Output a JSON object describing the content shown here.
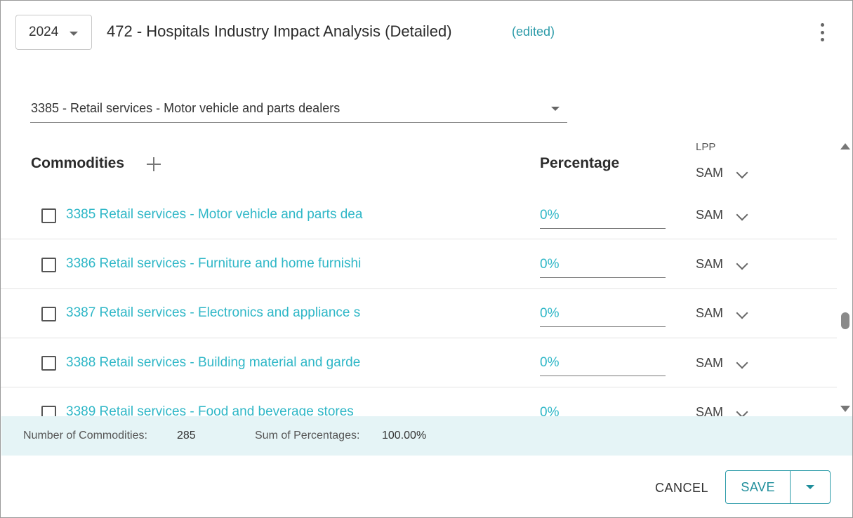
{
  "header": {
    "year": "2024",
    "title": "472 - Hospitals Industry Impact Analysis (Detailed)",
    "edited": "(edited)"
  },
  "industry_select": {
    "value": "3385 - Retail services - Motor vehicle and parts dealers"
  },
  "table": {
    "commodities_header": "Commodities",
    "percentage_header": "Percentage",
    "lpp_label": "LPP",
    "lpp_header_value": "SAM",
    "rows": [
      {
        "name": "3385 Retail services - Motor vehicle and parts dea",
        "percentage": "0%",
        "lpp": "SAM"
      },
      {
        "name": "3386 Retail services - Furniture and home furnishi",
        "percentage": "0%",
        "lpp": "SAM"
      },
      {
        "name": "3387 Retail services - Electronics and appliance s",
        "percentage": "0%",
        "lpp": "SAM"
      },
      {
        "name": "3388 Retail services - Building material and garde",
        "percentage": "0%",
        "lpp": "SAM"
      },
      {
        "name": "3389 Retail services - Food and beverage stores",
        "percentage": "0%",
        "lpp": "SAM"
      }
    ]
  },
  "summary": {
    "count_label": "Number of Commodities:",
    "count_value": "285",
    "sum_label": "Sum of Percentages:",
    "sum_value": "100.00%"
  },
  "footer": {
    "cancel_label": "CANCEL",
    "save_label": "SAVE"
  },
  "colors": {
    "accent": "#2fb7c7",
    "accent_dark": "#1f8e9b",
    "summary_bg": "#e5f4f6"
  }
}
